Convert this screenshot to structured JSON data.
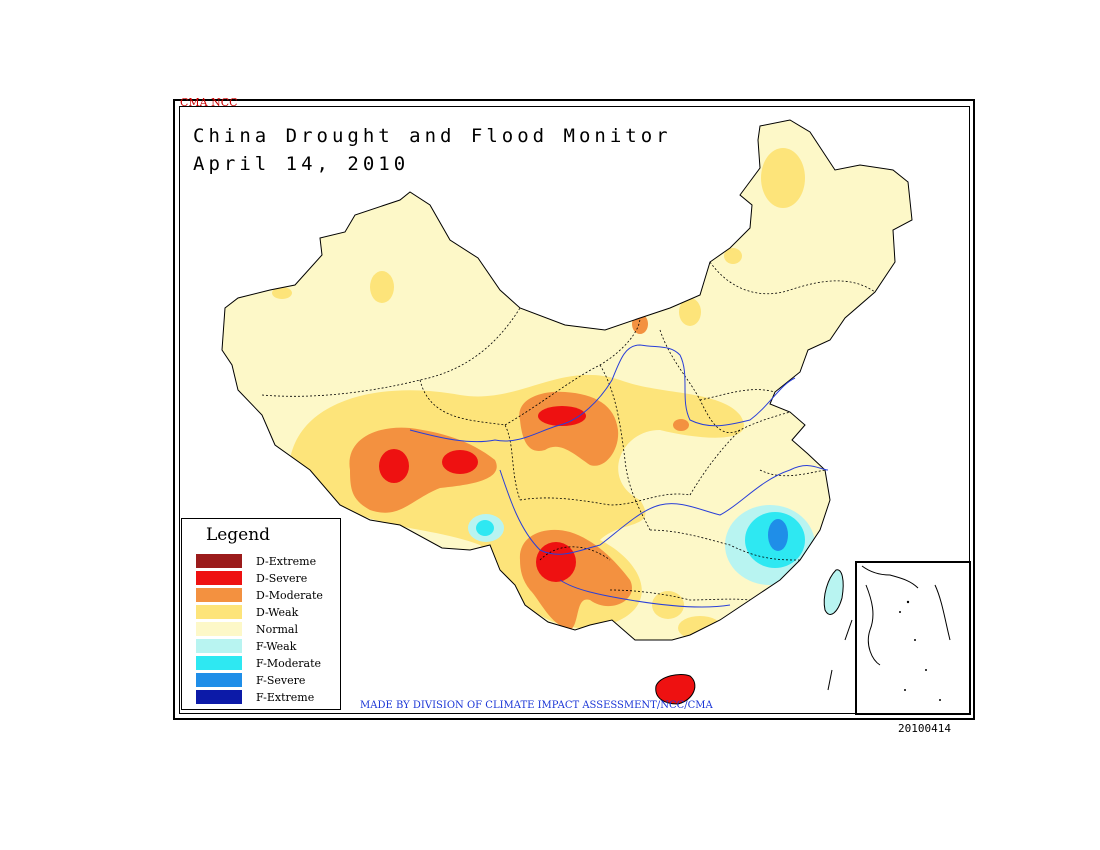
{
  "header": {
    "agency": "CMA NCC",
    "title": "China Drought and Flood Monitor",
    "date": "April 14, 2010"
  },
  "legend": {
    "title": "Legend",
    "items": [
      {
        "label": "D-Extreme",
        "color": "#9b1b1b"
      },
      {
        "label": "D-Severe",
        "color": "#ee1111"
      },
      {
        "label": "D-Moderate",
        "color": "#f39140"
      },
      {
        "label": "D-Weak",
        "color": "#fde47a"
      },
      {
        "label": "Normal",
        "color": "#fdf8c8"
      },
      {
        "label": "F-Weak",
        "color": "#b8f4f1"
      },
      {
        "label": "F-Moderate",
        "color": "#2ee8f2"
      },
      {
        "label": "F-Severe",
        "color": "#1f8ee8"
      },
      {
        "label": "F-Extreme",
        "color": "#0c1aa8"
      }
    ]
  },
  "credit": "MADE BY DIVISION OF CLIMATE IMPACT ASSESSMENT/NCC/CMA",
  "stamp": "20100414",
  "colors": {
    "river": "#2a3fd8",
    "border": "#000000"
  }
}
